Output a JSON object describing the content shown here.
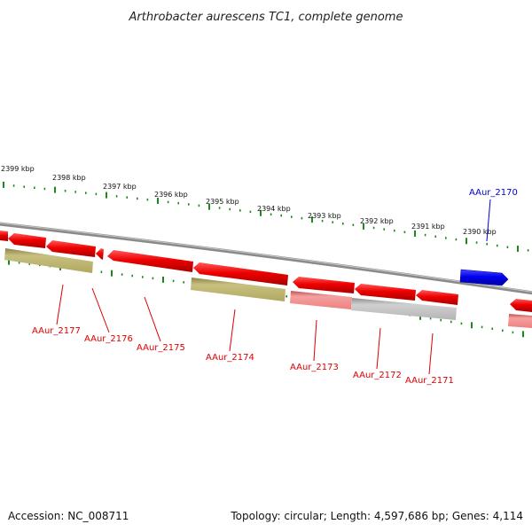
{
  "title": "Arthrobacter aurescens TC1, complete genome",
  "footer": {
    "accession": "Accession: NC_008711",
    "summary": "Topology: circular; Length: 4,597,686 bp; Genes: 4,114"
  },
  "colors": {
    "tick": "#1a8a1a",
    "backbone": "#8a8a8a",
    "gene_red": "#ee0000",
    "gene_blue": "#0000ee",
    "gene_olive": "#b8b068",
    "gene_pink": "#ee8888",
    "gene_gray": "#b8b8b8",
    "label_red": "#dd0000",
    "label_blue": "#0000cc"
  },
  "kbp_labels": [
    "2399 kbp",
    "2398 kbp",
    "2397 kbp",
    "2396 kbp",
    "2395 kbp",
    "2394 kbp",
    "2393 kbp",
    "2392 kbp",
    "2391 kbp",
    "2390 kbp"
  ],
  "gene_labels": [
    {
      "id": "g2170",
      "text": "AAur_2170",
      "color": "blue"
    },
    {
      "id": "g2171",
      "text": "AAur_2171",
      "color": "red"
    },
    {
      "id": "g2172",
      "text": "AAur_2172",
      "color": "red"
    },
    {
      "id": "g2173",
      "text": "AAur_2173",
      "color": "red"
    },
    {
      "id": "g2174",
      "text": "AAur_2174",
      "color": "red"
    },
    {
      "id": "g2175",
      "text": "AAur_2175",
      "color": "red"
    },
    {
      "id": "g2176",
      "text": "AAur_2176",
      "color": "red"
    },
    {
      "id": "g2177",
      "text": "AAur_2177",
      "color": "red"
    }
  ]
}
